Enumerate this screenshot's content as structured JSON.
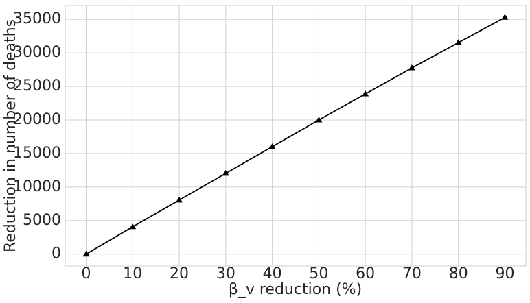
{
  "chart_data": {
    "type": "line",
    "x_label": "β_v reduction (%)",
    "y_label": "Reduction in number of deaths",
    "x": [
      0,
      10,
      20,
      30,
      40,
      50,
      60,
      70,
      80,
      90
    ],
    "series": [
      {
        "color": "#000000",
        "marker": "triangle",
        "values": [
          0,
          4080,
          8060,
          12040,
          16020,
          20000,
          23880,
          27760,
          31530,
          35300
        ]
      }
    ],
    "xlim": [
      -4.5,
      94.5
    ],
    "xticks": [
      0,
      10,
      20,
      30,
      40,
      50,
      60,
      70,
      80,
      90
    ],
    "ylim": [
      -1765,
      37065
    ],
    "yticks": [
      0,
      5000,
      10000,
      15000,
      20000,
      25000,
      30000,
      35000
    ],
    "grid": true
  }
}
